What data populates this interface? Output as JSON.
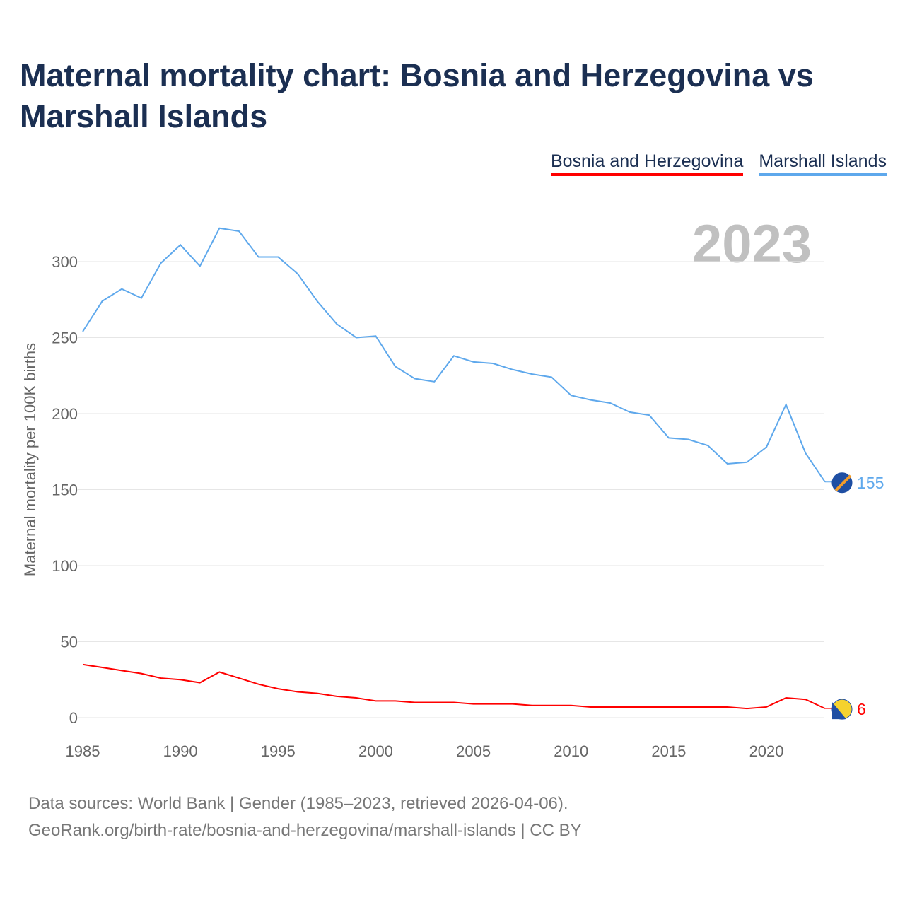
{
  "title": "Maternal mortality chart: Bosnia and Herzegovina vs Marshall Islands",
  "year_label": "2023",
  "footer": {
    "line1": "Data sources: World Bank | Gender (1985–2023, retrieved 2026-04-06).",
    "line2": "GeoRank.org/birth-rate/bosnia-and-herzegovina/marshall-islands | CC BY"
  },
  "chart_data": {
    "type": "line",
    "title": "Maternal mortality chart: Bosnia and Herzegovina vs Marshall Islands",
    "xlabel": "",
    "ylabel": "Maternal mortality per 100K births",
    "xlim": [
      1985,
      2023
    ],
    "ylim": [
      0,
      330
    ],
    "x_ticks": [
      1985,
      1990,
      1995,
      2000,
      2005,
      2010,
      2015,
      2020
    ],
    "y_ticks": [
      0,
      50,
      100,
      150,
      200,
      250,
      300
    ],
    "grid": true,
    "legend_placement": "top-right",
    "x": [
      1985,
      1986,
      1987,
      1988,
      1989,
      1990,
      1991,
      1992,
      1993,
      1994,
      1995,
      1996,
      1997,
      1998,
      1999,
      2000,
      2001,
      2002,
      2003,
      2004,
      2005,
      2006,
      2007,
      2008,
      2009,
      2010,
      2011,
      2012,
      2013,
      2014,
      2015,
      2016,
      2017,
      2018,
      2019,
      2020,
      2021,
      2022,
      2023
    ],
    "series": [
      {
        "name": "Bosnia and Herzegovina",
        "color": "#ff0000",
        "end_label": "6",
        "values": [
          35,
          33,
          31,
          29,
          26,
          25,
          23,
          30,
          26,
          22,
          19,
          17,
          16,
          14,
          13,
          11,
          11,
          10,
          10,
          10,
          9,
          9,
          9,
          8,
          8,
          8,
          7,
          7,
          7,
          7,
          7,
          7,
          7,
          7,
          6,
          7,
          13,
          12,
          6
        ]
      },
      {
        "name": "Marshall Islands",
        "color": "#5ea8ec",
        "end_label": "155",
        "values": [
          254,
          274,
          282,
          276,
          299,
          311,
          297,
          322,
          320,
          303,
          303,
          292,
          274,
          259,
          250,
          251,
          231,
          223,
          221,
          238,
          234,
          233,
          229,
          226,
          224,
          212,
          209,
          207,
          201,
          199,
          184,
          183,
          179,
          167,
          168,
          178,
          206,
          174,
          155
        ]
      }
    ]
  }
}
